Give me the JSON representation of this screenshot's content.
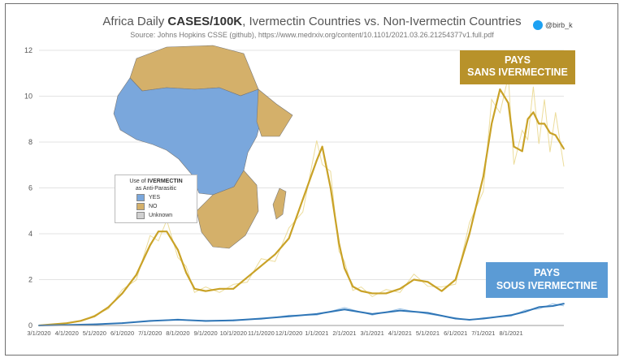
{
  "header": {
    "title_prefix": "Africa Daily ",
    "title_bold": "CASES/100K",
    "title_suffix": ", Ivermectin Countries vs. Non-Ivermectin Countries",
    "subtitle": "Source: Johns Hopkins CSSE (github), https://www.medrxiv.org/content/10.1101/2021.03.26.21254377v1.full.pdf",
    "handle": "@birb_k"
  },
  "labels": {
    "gold_line1": "PAYS",
    "gold_line2": "SANS IVERMECTINE",
    "blue_line1": "PAYS",
    "blue_line2": "SOUS IVERMECTINE"
  },
  "legend": {
    "title_prefix": "Use of ",
    "title_bold": "IVERMECTIN",
    "title_suffix": " as Anti-Parasitic",
    "items": [
      {
        "label": "YES",
        "color": "#7aa7dc"
      },
      {
        "label": "NO",
        "color": "#d4b06a"
      },
      {
        "label": "Unknown",
        "color": "#d0d0d0"
      }
    ]
  },
  "colors": {
    "gold": "#c9a227",
    "gold_light": "#ecdc9a",
    "blue": "#2e75b6",
    "blue_light": "#9cc3e6"
  },
  "chart_data": {
    "type": "line",
    "ylim": [
      0,
      12
    ],
    "yticks": [
      0,
      2,
      4,
      6,
      8,
      10,
      12
    ],
    "xticks": [
      "3/1/2020",
      "4/1/2020",
      "5/1/2020",
      "6/1/2020",
      "7/1/2020",
      "8/1/2020",
      "9/1/2020",
      "10/1/2020",
      "11/1/2020",
      "12/1/2020",
      "1/1/2021",
      "2/1/2021",
      "3/1/2021",
      "4/1/2021",
      "5/1/2021",
      "6/1/2021",
      "7/1/2021",
      "8/1/2021"
    ],
    "series": [
      {
        "name": "PAYS SANS IVERMECTINE",
        "x": [
          0,
          1,
          1.5,
          2,
          2.5,
          3,
          3.5,
          4,
          4.3,
          4.6,
          5,
          5.3,
          5.6,
          6,
          6.5,
          7,
          7.5,
          8,
          8.5,
          9,
          9.5,
          10,
          10.2,
          10.5,
          10.8,
          11,
          11.3,
          11.6,
          12,
          12.5,
          13,
          13.5,
          14,
          14.5,
          15,
          15.5,
          16,
          16.3,
          16.6,
          16.9,
          17.1,
          17.4,
          17.6,
          17.8,
          18,
          18.2,
          18.4,
          18.6,
          18.9
        ],
        "y": [
          0,
          0.1,
          0.2,
          0.4,
          0.8,
          1.4,
          2.2,
          3.5,
          4.1,
          4.1,
          3.3,
          2.3,
          1.6,
          1.5,
          1.6,
          1.6,
          2.1,
          2.6,
          3.1,
          3.8,
          5.5,
          7.2,
          7.8,
          6.0,
          3.6,
          2.5,
          1.7,
          1.5,
          1.4,
          1.4,
          1.6,
          2.0,
          1.9,
          1.5,
          2.0,
          4.0,
          6.5,
          8.8,
          10.3,
          9.7,
          7.8,
          7.6,
          9.0,
          9.3,
          8.8,
          8.8,
          8.4,
          8.3,
          7.7
        ]
      },
      {
        "name": "PAYS SOUS IVERMECTINE",
        "x": [
          0,
          1,
          2,
          3,
          4,
          5,
          6,
          7,
          8,
          9,
          10,
          11,
          12,
          13,
          14,
          15,
          15.5,
          16,
          17,
          17.5,
          18,
          18.5,
          18.9
        ],
        "y": [
          0,
          0.02,
          0.05,
          0.1,
          0.2,
          0.25,
          0.2,
          0.22,
          0.3,
          0.4,
          0.5,
          0.7,
          0.5,
          0.65,
          0.55,
          0.3,
          0.25,
          0.3,
          0.45,
          0.6,
          0.8,
          0.85,
          0.95
        ]
      }
    ]
  }
}
